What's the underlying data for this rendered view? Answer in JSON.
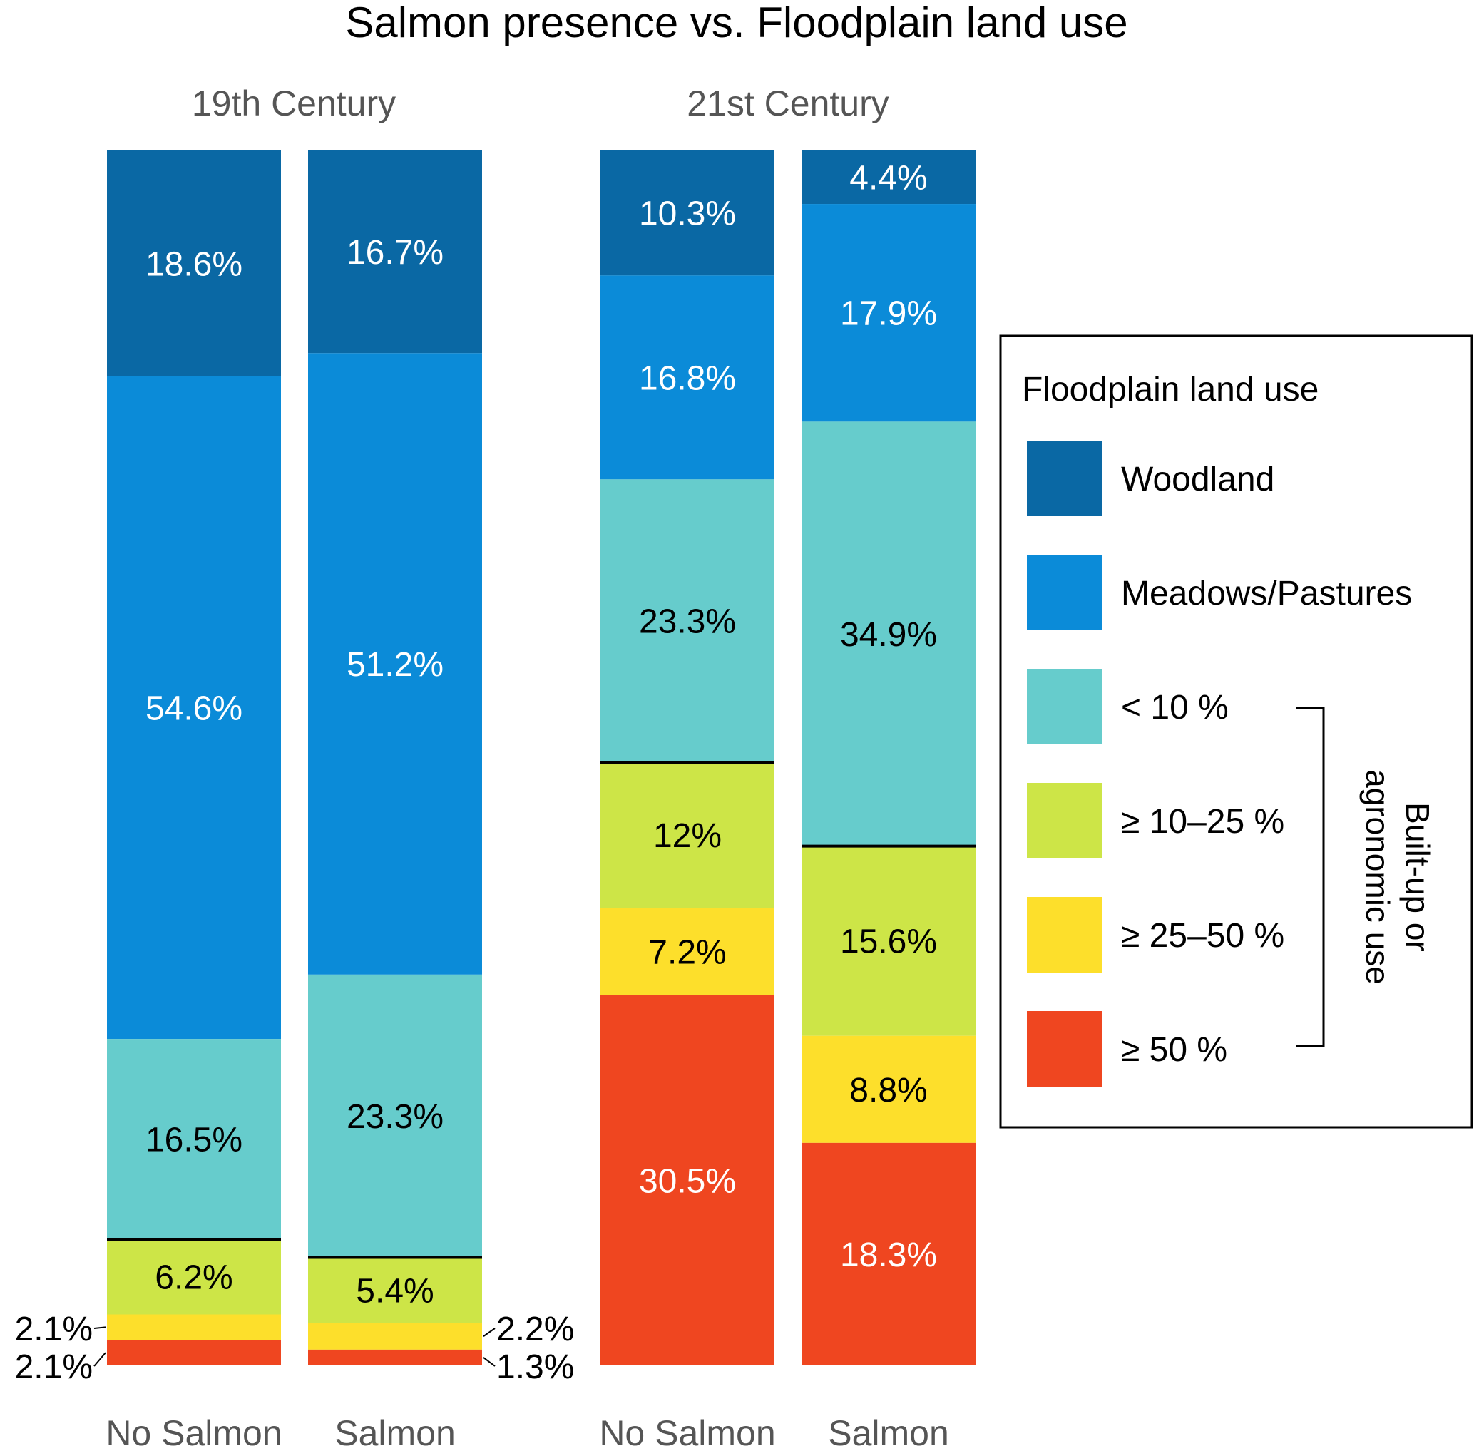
{
  "chart_data": {
    "type": "bar",
    "stacked": true,
    "title": "Salmon presence vs. Floodplain land use",
    "groups": [
      {
        "name": "19th Century",
        "bars": [
          {
            "name": "No Salmon",
            "values": [
              18.6,
              54.6,
              16.5,
              6.2,
              2.1,
              2.1
            ],
            "labels": [
              "18.6%",
              "54.6%",
              "16.5%",
              "6.2%",
              "2.1%",
              "2.1%"
            ]
          },
          {
            "name": "Salmon",
            "values": [
              16.7,
              51.2,
              23.3,
              5.4,
              2.2,
              1.3
            ],
            "labels": [
              "16.7%",
              "51.2%",
              "23.3%",
              "5.4%",
              "2.2%",
              "1.3%"
            ]
          }
        ]
      },
      {
        "name": "21st Century",
        "bars": [
          {
            "name": "No Salmon",
            "values": [
              10.3,
              16.8,
              23.3,
              12,
              7.2,
              30.5
            ],
            "labels": [
              "10.3%",
              "16.8%",
              "23.3%",
              "12%",
              "7.2%",
              "30.5%"
            ]
          },
          {
            "name": "Salmon",
            "values": [
              4.4,
              17.9,
              34.9,
              15.6,
              8.8,
              18.3
            ],
            "labels": [
              "4.4%",
              "17.9%",
              "34.9%",
              "15.6%",
              "8.8%",
              "18.3%"
            ]
          }
        ]
      }
    ],
    "categories_order_top_to_bottom": [
      "Woodland",
      "Meadows/Pastures",
      "< 10 %",
      "≥ 10–25 %",
      "≥ 25–50 %",
      "≥ 50 %"
    ],
    "colors": [
      "#0a68a4",
      "#0b8bd8",
      "#66cccc",
      "#cde547",
      "#fddf2b",
      "#ef4620"
    ],
    "label_colors": [
      "#ffffff",
      "#ffffff",
      "#000000",
      "#000000",
      "#000000",
      "#ffffff"
    ],
    "legend": {
      "title": "Floodplain land use",
      "placement": "right",
      "items": [
        "Woodland",
        "Meadows/Pastures",
        "< 10 %",
        "≥ 10–25 %",
        "≥ 25–50 %",
        "≥ 50 %"
      ],
      "bracket_label_lines": [
        "Built-up or",
        "agronomic use"
      ]
    },
    "ylim": [
      0,
      100
    ]
  }
}
